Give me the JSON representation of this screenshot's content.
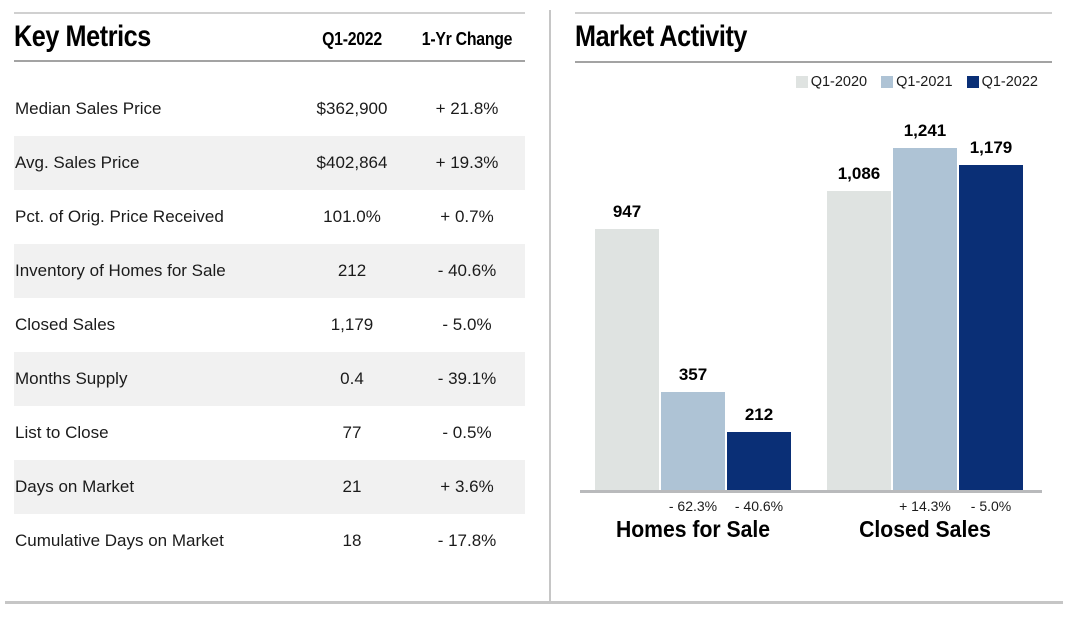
{
  "key_metrics": {
    "title": "Key Metrics",
    "columns": {
      "value": "Q1-2022",
      "change": "1-Yr Change"
    },
    "rows": [
      {
        "label": "Median Sales Price",
        "value": "$362,900",
        "change": "+ 21.8%"
      },
      {
        "label": "Avg. Sales Price",
        "value": "$402,864",
        "change": "+ 19.3%"
      },
      {
        "label": "Pct. of Orig. Price Received",
        "value": "101.0%",
        "change": "+ 0.7%"
      },
      {
        "label": "Inventory of Homes for Sale",
        "value": "212",
        "change": "- 40.6%"
      },
      {
        "label": "Closed Sales",
        "value": "1,179",
        "change": "- 5.0%"
      },
      {
        "label": "Months Supply",
        "value": "0.4",
        "change": "- 39.1%"
      },
      {
        "label": "List to Close",
        "value": "77",
        "change": "- 0.5%"
      },
      {
        "label": "Days on Market",
        "value": "21",
        "change": "+ 3.6%"
      },
      {
        "label": "Cumulative Days on Market",
        "value": "18",
        "change": "- 17.8%"
      }
    ]
  },
  "market_activity": {
    "title": "Market Activity"
  },
  "chart_data": {
    "type": "bar",
    "title": "Market Activity",
    "categories": [
      "Homes for Sale",
      "Closed Sales"
    ],
    "series": [
      {
        "name": "Q1-2020",
        "values": [
          947,
          1086
        ],
        "color": "#dfe3e1"
      },
      {
        "name": "Q1-2021",
        "values": [
          357,
          1241
        ],
        "color": "#aec3d5"
      },
      {
        "name": "Q1-2022",
        "values": [
          212,
          1179
        ],
        "color": "#0a2f76"
      }
    ],
    "bar_labels": [
      [
        "947",
        "357",
        "212"
      ],
      [
        "1,086",
        "1,241",
        "1,179"
      ]
    ],
    "pct_changes": [
      [
        "",
        "- 62.3%",
        "- 40.6%"
      ],
      [
        "",
        "+ 14.3%",
        "- 5.0%"
      ]
    ],
    "xlabel": "",
    "ylabel": "",
    "ylim": [
      0,
      1300
    ],
    "grid": false,
    "legend_position": "top-right"
  }
}
